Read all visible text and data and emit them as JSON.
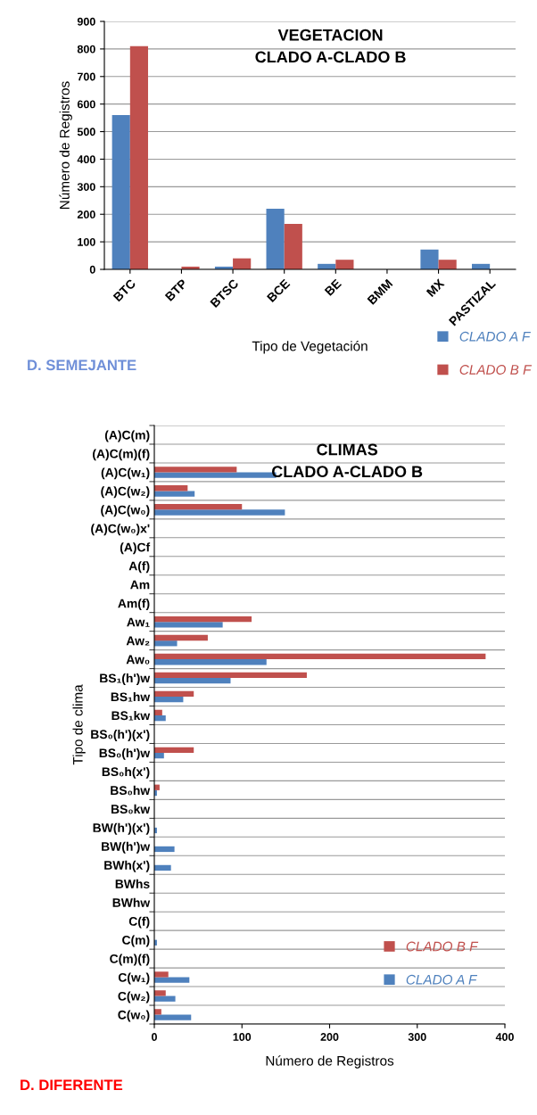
{
  "chart_data": [
    {
      "type": "bar",
      "title": "VEGETACION\nCLADO A-CLADO B",
      "xlabel": "Tipo de Vegetación",
      "ylabel": "Número de Registros",
      "categories": [
        "BTC",
        "BTP",
        "BTSC",
        "BCE",
        "BE",
        "BMM",
        "MX",
        "PASTIZAL"
      ],
      "series": [
        {
          "name": "CLADO A F",
          "color": "#4f81bd",
          "values": [
            560,
            0,
            10,
            220,
            20,
            0,
            72,
            20
          ]
        },
        {
          "name": "CLADO B F",
          "color": "#c0504d",
          "values": [
            810,
            10,
            40,
            165,
            35,
            0,
            35,
            0
          ]
        }
      ],
      "ylim": [
        0,
        900
      ],
      "yticks": [
        0,
        100,
        200,
        300,
        400,
        500,
        600,
        700,
        800,
        900
      ],
      "grid": "y",
      "legend": "bottom right",
      "annotations": [
        "D. SEMEJANTE"
      ]
    },
    {
      "type": "bar",
      "orientation": "horizontal",
      "title": "CLIMAS\nCLADO A-CLADO B",
      "xlabel": "Número de Registros",
      "ylabel": "Tipo de clima",
      "categories": [
        "(A)C(m)",
        "(A)C(m)(f)",
        "(A)C(w₁)",
        "(A)C(w₂)",
        "(A)C(w₀)",
        "(A)C(w₀)x'",
        "(A)Cf",
        "A(f)",
        "Am",
        "Am(f)",
        "Aw₁",
        "Aw₂",
        "Aw₀",
        "BS₁(h')w",
        "BS₁hw",
        "BS₁kw",
        "BS₀(h')(x')",
        "BS₀(h')w",
        "BS₀h(x')",
        "BS₀hw",
        "BS₀kw",
        "BW(h')(x')",
        "BW(h')w",
        "BWh(x')",
        "BWhs",
        "BWhw",
        "C(f)",
        "C(m)",
        "C(m)(f)",
        "C(w₁)",
        "C(w₂)",
        "C(w₀)"
      ],
      "series": [
        {
          "name": "CLADO A F",
          "color": "#4f81bd",
          "values": [
            0,
            0,
            139,
            46,
            149,
            0,
            0,
            0,
            0,
            0,
            78,
            26,
            128,
            87,
            33,
            13,
            0,
            11,
            0,
            3,
            0,
            3,
            23,
            19,
            0,
            0,
            0,
            3,
            0,
            40,
            24,
            42
          ]
        },
        {
          "name": "CLADO B F",
          "color": "#c0504d",
          "values": [
            0,
            0,
            94,
            38,
            100,
            0,
            0,
            0,
            0,
            0,
            111,
            61,
            378,
            174,
            45,
            9,
            0,
            45,
            0,
            6,
            0,
            0,
            0,
            0,
            0,
            0,
            0,
            0,
            0,
            16,
            13,
            8
          ]
        }
      ],
      "xlim": [
        0,
        400
      ],
      "xticks": [
        0,
        100,
        200,
        300,
        400
      ],
      "grid": "y",
      "legend": "right",
      "annotations": [
        "D. DIFERENTE"
      ]
    }
  ]
}
